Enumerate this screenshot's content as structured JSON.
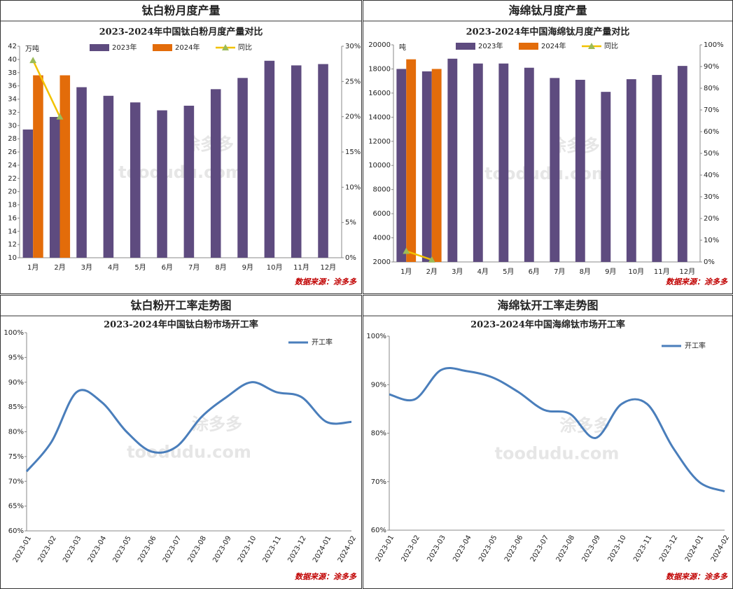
{
  "chart_data": [
    {
      "type": "bar",
      "panel_title": "钛白粉月度产量",
      "title": "2023-2024年中国钛白粉月度产量对比",
      "y_unit": "万吨",
      "categories": [
        "1月",
        "2月",
        "3月",
        "4月",
        "5月",
        "6月",
        "7月",
        "8月",
        "9月",
        "10月",
        "11月",
        "12月"
      ],
      "series": [
        {
          "name": "2023年",
          "color": "#5e4b7f",
          "values": [
            29.4,
            31.3,
            35.8,
            34.5,
            33.5,
            32.3,
            33.0,
            35.5,
            37.2,
            39.8,
            39.1,
            39.3
          ]
        },
        {
          "name": "2024年",
          "color": "#e36c0a",
          "values": [
            37.6,
            37.6,
            null,
            null,
            null,
            null,
            null,
            null,
            null,
            null,
            null,
            null
          ]
        },
        {
          "name": "同比",
          "color": "#f2c200",
          "type": "line",
          "axis": "y2",
          "values": [
            28,
            20,
            null,
            null,
            null,
            null,
            null,
            null,
            null,
            null,
            null,
            null
          ]
        }
      ],
      "ylim": [
        10,
        42
      ],
      "yticks": [
        10,
        12,
        14,
        16,
        18,
        20,
        22,
        24,
        26,
        28,
        30,
        32,
        34,
        36,
        38,
        40,
        42
      ],
      "y2lim": [
        0,
        30
      ],
      "y2ticks": [
        {
          "value": 0,
          "label": "0%"
        },
        {
          "value": 5,
          "label": "5%"
        },
        {
          "value": 10,
          "label": "10%"
        },
        {
          "value": 15,
          "label": "15%"
        },
        {
          "value": 20,
          "label": "20%"
        },
        {
          "value": 25,
          "label": "25%"
        },
        {
          "value": 30,
          "label": "30%"
        }
      ],
      "source": "数据来源：涂多多",
      "watermark": [
        "涂多多",
        "toodudu.com"
      ]
    },
    {
      "type": "bar",
      "panel_title": "海绵钛月度产量",
      "title": "2023-2024年中国海绵钛月度产量对比",
      "y_unit": "吨",
      "categories": [
        "1月",
        "2月",
        "3月",
        "4月",
        "5月",
        "6月",
        "7月",
        "8月",
        "9月",
        "10月",
        "11月",
        "12月"
      ],
      "series": [
        {
          "name": "2023年",
          "color": "#5e4b7f",
          "values": [
            18000,
            17800,
            18850,
            18450,
            18450,
            18100,
            17250,
            17100,
            16100,
            17150,
            17500,
            18250
          ]
        },
        {
          "name": "2024年",
          "color": "#e36c0a",
          "values": [
            18800,
            18000,
            null,
            null,
            null,
            null,
            null,
            null,
            null,
            null,
            null,
            null
          ]
        },
        {
          "name": "同比",
          "color": "#f2c200",
          "type": "line",
          "axis": "y2",
          "values": [
            5,
            1,
            null,
            null,
            null,
            null,
            null,
            null,
            null,
            null,
            null,
            null
          ]
        }
      ],
      "ylim": [
        2000,
        20000
      ],
      "yticks": [
        2000,
        4000,
        6000,
        8000,
        10000,
        12000,
        14000,
        16000,
        18000,
        20000
      ],
      "y2lim": [
        0,
        100
      ],
      "y2ticks": [
        {
          "value": 0,
          "label": "0%"
        },
        {
          "value": 10,
          "label": "10%"
        },
        {
          "value": 20,
          "label": "20%"
        },
        {
          "value": 30,
          "label": "30%"
        },
        {
          "value": 40,
          "label": "40%"
        },
        {
          "value": 50,
          "label": "50%"
        },
        {
          "value": 60,
          "label": "60%"
        },
        {
          "value": 70,
          "label": "70%"
        },
        {
          "value": 80,
          "label": "80%"
        },
        {
          "value": 90,
          "label": "90%"
        },
        {
          "value": 100,
          "label": "100%"
        }
      ],
      "source": "数据来源：涂多多",
      "watermark": [
        "涂多多",
        "toodudu.com"
      ]
    },
    {
      "type": "line",
      "panel_title": "钛白粉开工率走势图",
      "title": "2023-2024年中国钛白粉市场开工率",
      "categories": [
        "2023-01",
        "2023-02",
        "2023-03",
        "2023-04",
        "2023-05",
        "2023-06",
        "2023-07",
        "2023-08",
        "2023-09",
        "2023-10",
        "2023-11",
        "2023-12",
        "2024-01",
        "2024-02"
      ],
      "series": [
        {
          "name": "开工率",
          "color": "#4a7ebb",
          "values": [
            72,
            78,
            88,
            86,
            80,
            76,
            77,
            83,
            87,
            90,
            88,
            87,
            82,
            82
          ]
        }
      ],
      "ylim": [
        60,
        100
      ],
      "yticks": [
        {
          "value": 60,
          "label": "60%"
        },
        {
          "value": 65,
          "label": "65%"
        },
        {
          "value": 70,
          "label": "70%"
        },
        {
          "value": 75,
          "label": "75%"
        },
        {
          "value": 80,
          "label": "80%"
        },
        {
          "value": 85,
          "label": "85%"
        },
        {
          "value": 90,
          "label": "90%"
        },
        {
          "value": 95,
          "label": "95%"
        },
        {
          "value": 100,
          "label": "100%"
        }
      ],
      "source": "数据来源：涂多多",
      "watermark": [
        "涂多多",
        "toodudu.com"
      ]
    },
    {
      "type": "line",
      "panel_title": "海绵钛开工率走势图",
      "title": "2023-2024年中国海绵钛市场开工率",
      "categories": [
        "2023-01",
        "2023-02",
        "2023-03",
        "2023-04",
        "2023-05",
        "2023-06",
        "2023-07",
        "2023-08",
        "2023-09",
        "2023-10",
        "2023-11",
        "2023-12",
        "2024-01",
        "2024-02"
      ],
      "series": [
        {
          "name": "开工率",
          "color": "#4a7ebb",
          "values": [
            88,
            87,
            93,
            92.8,
            91.5,
            88.5,
            84.8,
            84,
            79,
            86,
            86,
            77,
            70,
            68
          ]
        }
      ],
      "ylim": [
        60,
        100
      ],
      "yticks": [
        {
          "value": 60,
          "label": "60%"
        },
        {
          "value": 70,
          "label": "70%"
        },
        {
          "value": 80,
          "label": "80%"
        },
        {
          "value": 90,
          "label": "90%"
        },
        {
          "value": 100,
          "label": "100%"
        }
      ],
      "source": "数据来源：涂多多",
      "watermark": [
        "涂多多",
        "toodudu.com"
      ]
    }
  ]
}
